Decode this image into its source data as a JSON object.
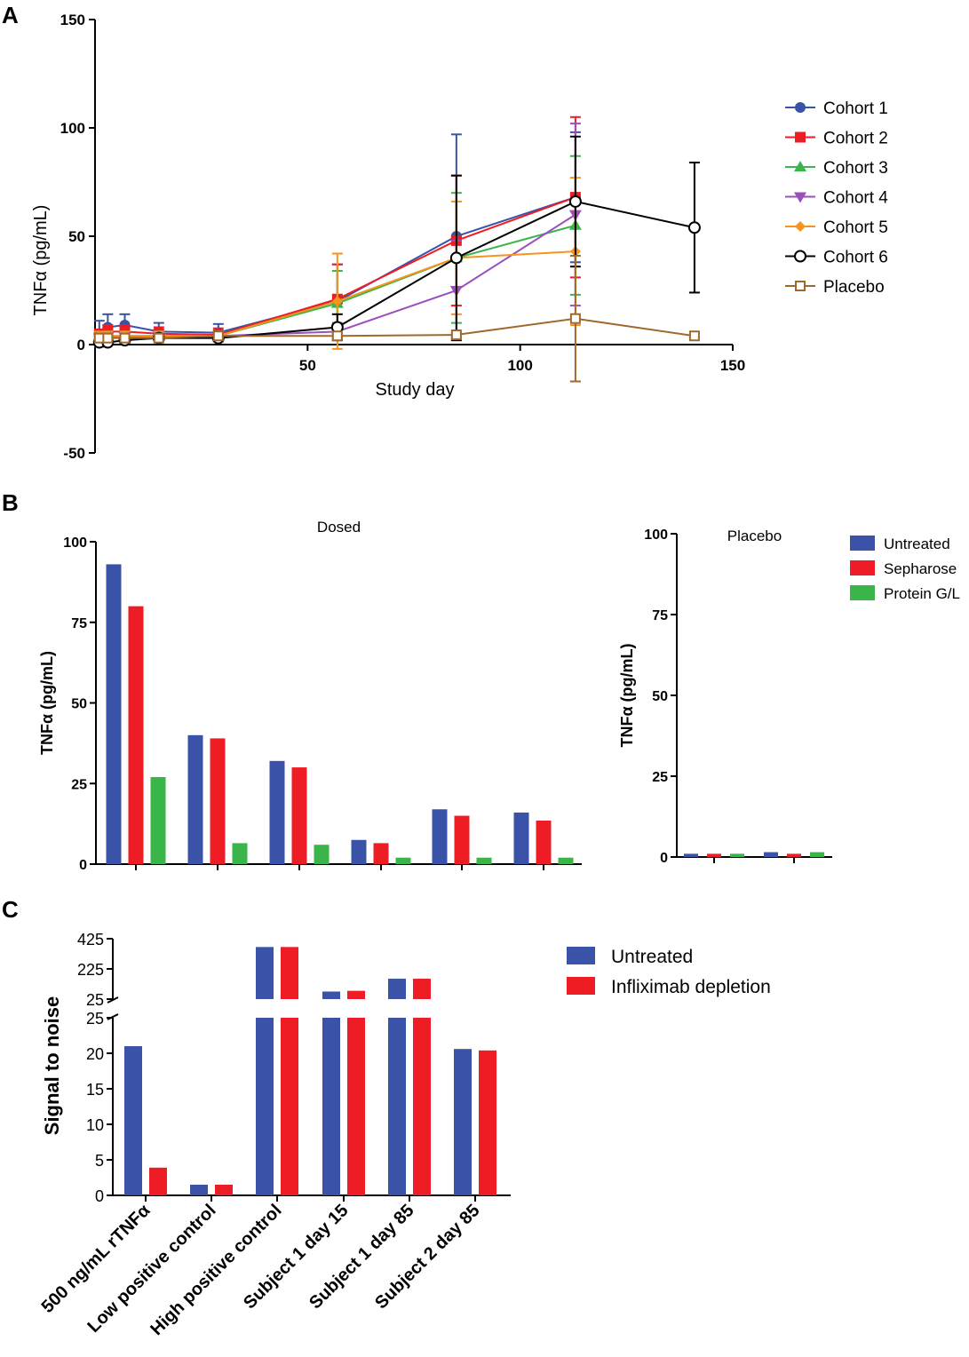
{
  "colors": {
    "blue": "#3a52a7",
    "red": "#ee1c25",
    "green": "#3ab54a",
    "purple": "#9b4fbe",
    "orange": "#f7941d",
    "black": "#000000",
    "brown": "#a0682b"
  },
  "chart_data": [
    {
      "panel": "A",
      "type": "line",
      "title": "",
      "xlabel": "Study day",
      "ylabel": "TNFα (pg/mL)",
      "xlim": [
        0,
        150
      ],
      "ylim": [
        -50,
        150
      ],
      "xticks": [
        "50",
        "100",
        "150"
      ],
      "yticks": [
        "-50",
        "50",
        "100",
        "150"
      ],
      "ytick_zero": "0",
      "legend_position": "right",
      "grid": false,
      "series": [
        {
          "name": "Cohort 1",
          "color": "blue",
          "marker": "circle",
          "x": [
            1,
            3,
            7,
            15,
            29,
            57,
            85,
            113
          ],
          "y": [
            5,
            8,
            9,
            6,
            5.5,
            20,
            50,
            68
          ],
          "err": [
            6,
            6,
            5,
            4,
            4,
            17,
            47,
            30
          ]
        },
        {
          "name": "Cohort 2",
          "color": "red",
          "marker": "square",
          "x": [
            1,
            3,
            7,
            15,
            29,
            57,
            85,
            113
          ],
          "y": [
            4,
            6,
            6,
            5,
            4.5,
            21,
            48,
            68
          ],
          "err": [
            3,
            3,
            3,
            3,
            3,
            16,
            30,
            37
          ]
        },
        {
          "name": "Cohort 3",
          "color": "green",
          "marker": "triangle-up",
          "x": [
            1,
            3,
            7,
            15,
            29,
            57,
            85,
            113
          ],
          "y": [
            3,
            4,
            4,
            4,
            4,
            19,
            40,
            55
          ],
          "err": [
            2,
            2,
            2,
            2,
            2,
            15,
            30,
            32
          ]
        },
        {
          "name": "Cohort 4",
          "color": "purple",
          "marker": "triangle-down",
          "x": [
            1,
            3,
            7,
            15,
            29,
            57,
            85,
            113
          ],
          "y": [
            3,
            3.5,
            3.5,
            4,
            4,
            6,
            25,
            60
          ],
          "err": [
            2,
            2,
            2,
            2,
            2,
            4,
            23,
            42
          ]
        },
        {
          "name": "Cohort 5",
          "color": "orange",
          "marker": "diamond",
          "x": [
            1,
            3,
            7,
            15,
            29,
            57,
            85,
            113
          ],
          "y": [
            4,
            4,
            4,
            4,
            4,
            20,
            40,
            43
          ],
          "err": [
            2,
            2,
            2,
            2,
            2,
            22,
            26,
            34
          ]
        },
        {
          "name": "Cohort 6",
          "color": "black",
          "marker": "circle-open",
          "x": [
            1,
            3,
            7,
            15,
            29,
            57,
            85,
            113,
            141
          ],
          "y": [
            1,
            1,
            2,
            3,
            3,
            8,
            40,
            66,
            54
          ],
          "err": [
            1,
            1,
            1,
            1,
            1,
            6,
            38,
            30,
            30
          ]
        },
        {
          "name": "Placebo",
          "color": "brown",
          "marker": "square-open",
          "x": [
            1,
            3,
            7,
            15,
            29,
            57,
            85,
            113,
            141
          ],
          "y": [
            3,
            3,
            3,
            3,
            4,
            4,
            4.5,
            12,
            4
          ],
          "err": [
            1,
            1,
            1,
            1,
            1,
            1,
            1,
            29,
            0
          ]
        }
      ]
    },
    {
      "panel": "B",
      "type": "bar",
      "subplots": [
        {
          "title": "Dosed",
          "xlabel": "",
          "ylabel": "TNFα (pg/mL)",
          "ylim": [
            0,
            100
          ],
          "yticks": [
            "0",
            "25",
            "50",
            "75",
            "100"
          ],
          "categories": [
            "",
            "",
            "",
            "",
            "",
            ""
          ],
          "series": [
            {
              "name": "Untreated",
              "color": "blue",
              "values": [
                93,
                40,
                32,
                7.5,
                17,
                16
              ]
            },
            {
              "name": "Sepharose",
              "color": "red",
              "values": [
                80,
                39,
                30,
                6.5,
                15,
                13.5
              ]
            },
            {
              "name": "Protein G/L",
              "color": "green",
              "values": [
                27,
                6.5,
                6,
                2,
                2,
                2
              ]
            }
          ]
        },
        {
          "title": "Placebo",
          "xlabel": "",
          "ylabel": "TNFα (pg/mL)",
          "ylim": [
            0,
            100
          ],
          "yticks": [
            "0",
            "25",
            "50",
            "75",
            "100"
          ],
          "categories": [
            "",
            ""
          ],
          "series": [
            {
              "name": "Untreated",
              "color": "blue",
              "values": [
                1,
                1.5
              ]
            },
            {
              "name": "Sepharose",
              "color": "red",
              "values": [
                1,
                1
              ]
            },
            {
              "name": "Protein G/L",
              "color": "green",
              "values": [
                1,
                1.5
              ]
            }
          ]
        }
      ],
      "legend": [
        "Untreated",
        "Sepharose",
        "Protein G/L"
      ],
      "legend_position": "top-right"
    },
    {
      "panel": "C",
      "type": "bar",
      "title": "",
      "xlabel": "",
      "ylabel": "Signal to noise",
      "broken_axis": true,
      "lower_ylim": [
        0,
        25
      ],
      "upper_ylim": [
        25,
        425
      ],
      "lower_yticks": [
        "0",
        "5",
        "10",
        "15",
        "20",
        "25"
      ],
      "upper_yticks": [
        "25",
        "225",
        "425"
      ],
      "categories": [
        "500 ng/mL rTNFα",
        "Low positive control",
        "High positive control",
        "Subject 1 day 15",
        "Subject 1 day 85",
        "Subject 2 day 85"
      ],
      "series": [
        {
          "name": "Untreated",
          "color": "blue",
          "values": [
            21,
            1.5,
            370,
            75,
            160,
            20.6
          ]
        },
        {
          "name": "Infliximab depletion",
          "color": "red",
          "values": [
            3.9,
            1.5,
            370,
            80,
            160,
            20.4
          ]
        }
      ],
      "legend_position": "top-right"
    }
  ],
  "panel_labels": [
    "A",
    "B",
    "C"
  ]
}
